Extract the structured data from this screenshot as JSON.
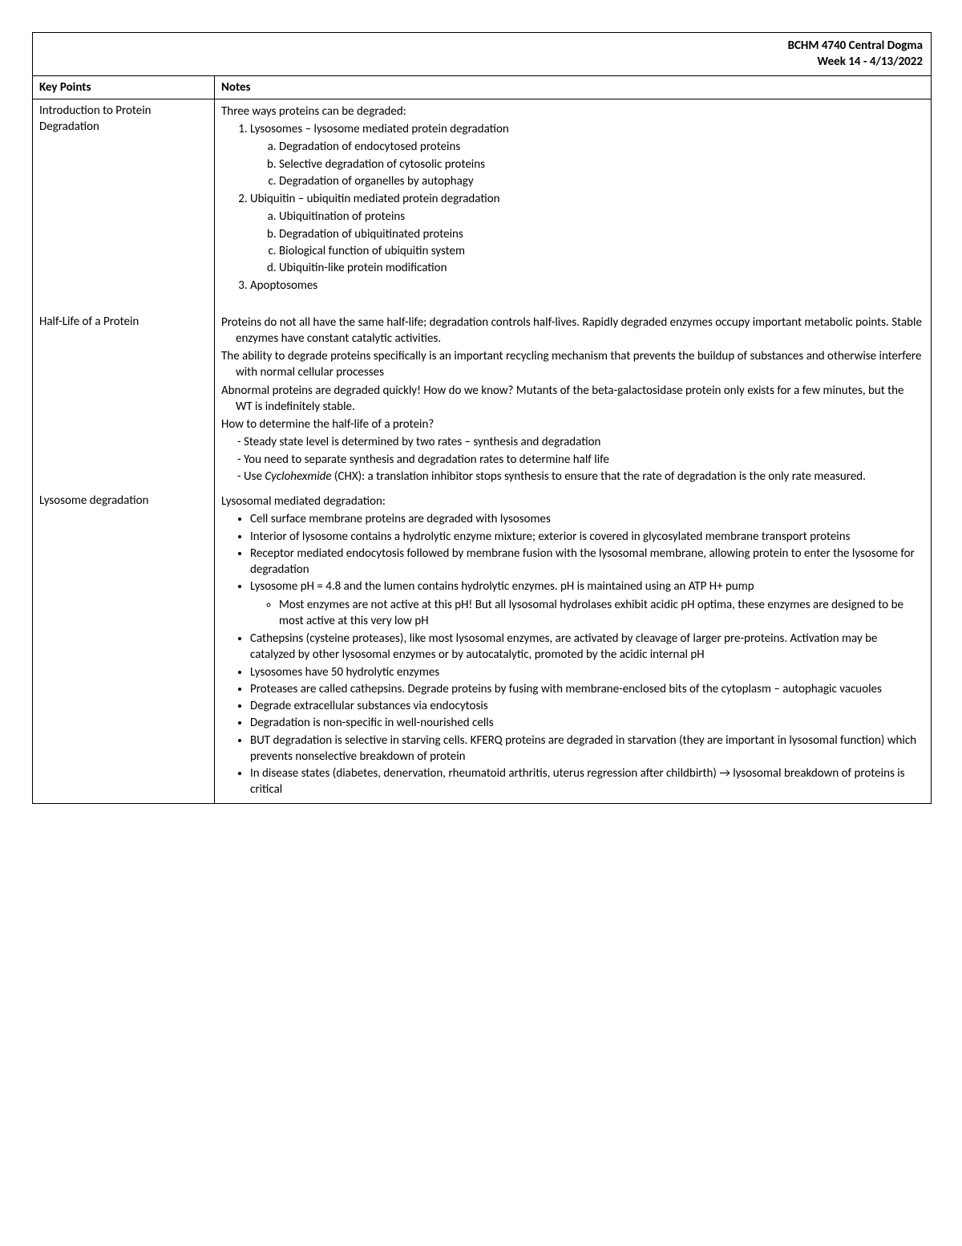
{
  "header": {
    "course": "BCHM 4740 Central Dogma",
    "week": "Week 14 - 4/13/2022"
  },
  "columns": {
    "key": "Key Points",
    "notes": "Notes"
  },
  "sections": [
    {
      "key": "Introduction to Protein Degradation",
      "intro": "Three ways proteins can be degraded:",
      "ol": [
        {
          "text": "Lysosomes – lysosome mediated protein degradation",
          "sub": [
            "Degradation of endocytosed proteins",
            "Selective degradation of cytosolic proteins",
            "Degradation of organelles by autophagy"
          ]
        },
        {
          "text": "Ubiquitin – ubiquitin mediated protein degradation",
          "sub": [
            "Ubiquitination of proteins",
            "Degradation of ubiquitinated proteins",
            "Biological function of ubiquitin system",
            "Ubiquitin-like protein modification"
          ]
        },
        {
          "text": "Apoptosomes"
        }
      ]
    },
    {
      "key": "Half-Life of a Protein",
      "paras": [
        "Proteins do not all have the same half-life; degradation controls half-lives. Rapidly degraded enzymes occupy important metabolic points. Stable enzymes have constant catalytic activities.",
        "The ability to degrade proteins specifically is an important recycling mechanism that prevents the buildup of substances and otherwise interfere with normal cellular processes",
        "Abnormal proteins are degraded quickly! How do we know? Mutants of the beta-galactosidase protein only exists for a few minutes, but the WT is indefinitely stable.",
        "How to determine the half-life of a protein?"
      ],
      "dash": [
        "Steady state level is determined by two rates – synthesis and degradation",
        "You need to separate synthesis and degradation rates to determine half life"
      ],
      "dash_last_prefix": "Use ",
      "dash_last_italic": "Cyclohexmide",
      "dash_last_suffix": " (CHX): a translation inhibitor stops synthesis to ensure that the rate of degradation is the only rate measured."
    },
    {
      "key": "Lysosome degradation",
      "intro": "Lysosomal mediated degradation:",
      "bullets": [
        {
          "text": "Cell surface membrane proteins are degraded with lysosomes"
        },
        {
          "text": "Interior of lysosome contains a hydrolytic enzyme mixture; exterior is covered in glycosylated membrane transport proteins"
        },
        {
          "text": "Receptor mediated endocytosis followed by membrane fusion with the lysosomal membrane, allowing protein to enter the lysosome for degradation"
        },
        {
          "text": "Lysosome pH = 4.8 and the lumen contains hydrolytic enzymes. pH is maintained using an ATP H+ pump",
          "sub": [
            "Most enzymes are not active at this pH! But all lysosomal hydrolases exhibit acidic pH optima, these enzymes are designed to be most active at this very low pH"
          ]
        },
        {
          "text": "Cathepsins (cysteine proteases), like most lysosomal enzymes, are activated by cleavage of larger pre-proteins. Activation may be catalyzed by other lysosomal enzymes or by autocatalytic, promoted by the acidic internal pH"
        },
        {
          "text": "Lysosomes have 50 hydrolytic enzymes"
        },
        {
          "text": "Proteases are called cathepsins. Degrade proteins by fusing with membrane-enclosed bits of the cytoplasm – autophagic vacuoles"
        },
        {
          "text": "Degrade extracellular substances via endocytosis"
        },
        {
          "text": "Degradation is non-specific in well-nourished cells"
        },
        {
          "text": "BUT degradation is selective in starving cells. KFERQ proteins are degraded in starvation (they are important in lysosomal function) which prevents nonselective breakdown of protein"
        },
        {
          "text": "In disease states (diabetes, denervation, rheumatoid arthritis, uterus regression after childbirth) → lysosomal breakdown of proteins is critical"
        }
      ]
    }
  ]
}
